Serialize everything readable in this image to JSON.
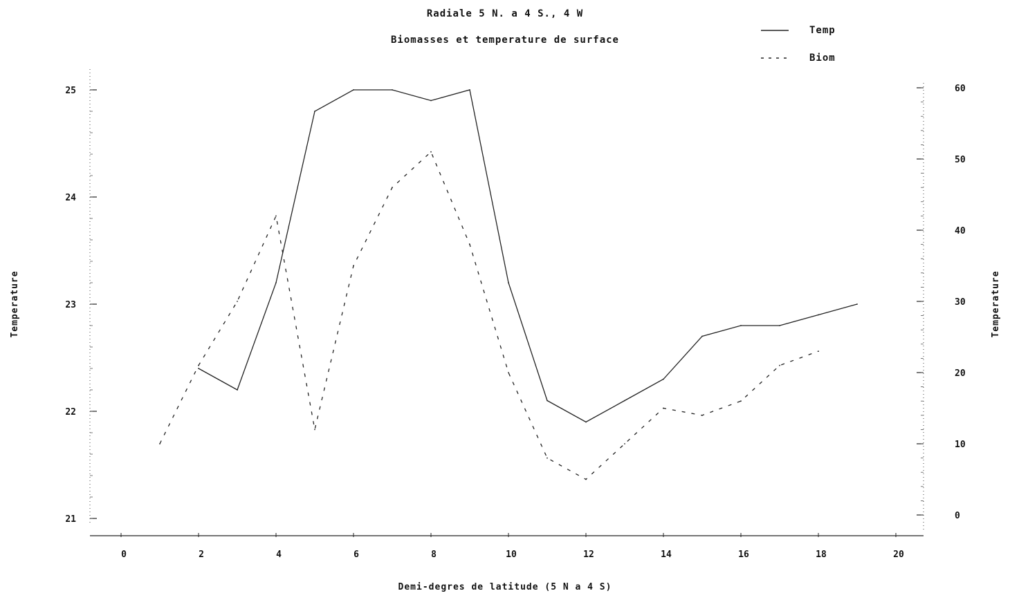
{
  "chart_data": {
    "type": "line",
    "title": "Radiale 5 N. a 4 S., 4 W",
    "subtitle": "Biomasses et temperature de surface",
    "xlabel": "Demi-degres de latitude (5 N a 4 S)",
    "ylabel": "Temperature",
    "y2label": "Temperature",
    "xlim": [
      -1,
      21
    ],
    "ylim": [
      21,
      25
    ],
    "y2lim": [
      0,
      60
    ],
    "x_ticks": [
      0,
      2,
      4,
      6,
      8,
      10,
      12,
      14,
      16,
      18,
      20
    ],
    "x_tick_labels": [
      "0",
      "2",
      "4",
      "6",
      "8",
      "10",
      "12",
      "14",
      "16",
      "18",
      "20"
    ],
    "y_ticks": [
      21,
      22,
      23,
      24,
      25
    ],
    "y_tick_labels": [
      "21",
      "22",
      "23",
      "24",
      "25"
    ],
    "y2_ticks": [
      0,
      10,
      20,
      30,
      40,
      50,
      60
    ],
    "y2_tick_labels": [
      "0",
      "10",
      "20",
      "30",
      "40",
      "50",
      "60"
    ],
    "legend_position": "top-right",
    "series": [
      {
        "name": "Temp",
        "axis": "left",
        "style": "solid",
        "color": "#222222",
        "x": [
          2,
          3,
          4,
          5,
          6,
          7,
          8,
          9,
          10,
          11,
          12,
          13,
          14,
          15,
          16,
          17,
          18,
          19
        ],
        "values": [
          22.4,
          22.2,
          23.2,
          24.8,
          25.0,
          25.0,
          24.9,
          25.0,
          23.2,
          22.1,
          21.9,
          22.1,
          22.3,
          22.7,
          22.8,
          22.8,
          22.9,
          23.0
        ]
      },
      {
        "name": "Biom",
        "axis": "right",
        "style": "dashed",
        "color": "#222222",
        "x": [
          1,
          2,
          3,
          4,
          5,
          6,
          7,
          8,
          9,
          10,
          11,
          12,
          13,
          14,
          15,
          16,
          17,
          18
        ],
        "values": [
          10,
          21,
          30,
          42,
          12,
          35,
          46,
          51,
          38,
          20,
          8,
          5,
          10,
          15,
          14,
          16,
          21,
          23
        ]
      }
    ]
  }
}
